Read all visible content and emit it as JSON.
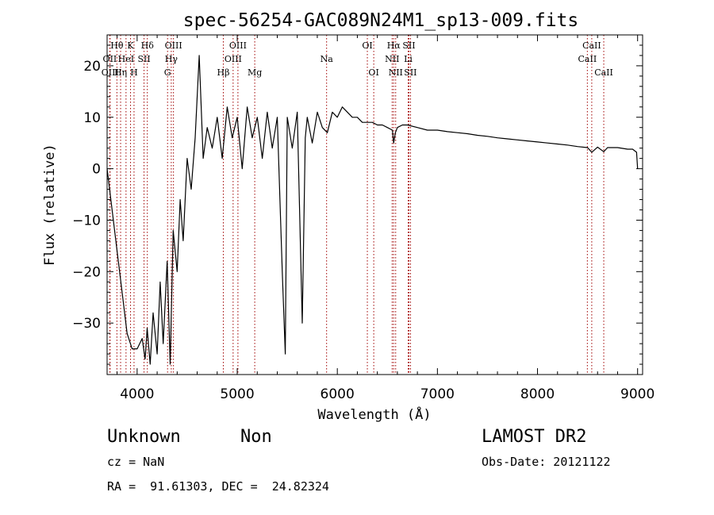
{
  "chart_data": {
    "type": "line",
    "title": "spec-56254-GAC089N24M1_sp13-009.fits",
    "xlabel": "Wavelength (Å)",
    "ylabel": "Flux (relative)",
    "xlim": [
      3700,
      9050
    ],
    "ylim": [
      -40,
      26
    ],
    "xticks": [
      4000,
      5000,
      6000,
      7000,
      8000,
      9000
    ],
    "yticks": [
      -30,
      -20,
      -10,
      0,
      10,
      20
    ],
    "grid": false,
    "colors": {
      "spectrum": "#000000",
      "lines": "#a00000"
    },
    "series": [
      {
        "x": [
          3700,
          3750,
          3800,
          3850,
          3900,
          3950,
          4000,
          4050,
          4080,
          4100,
          4130,
          4160,
          4200,
          4230,
          4260,
          4300,
          4330,
          4360,
          4400,
          4430,
          4460,
          4500,
          4540,
          4580,
          4620,
          4660,
          4700,
          4750,
          4800,
          4850,
          4900,
          4950,
          5000,
          5050,
          5100,
          5150,
          5200,
          5250,
          5300,
          5350,
          5400,
          5450,
          5480,
          5500,
          5550,
          5600,
          5650,
          5680,
          5700,
          5750,
          5800,
          5850,
          5900,
          5950,
          6000,
          6050,
          6100,
          6150,
          6200,
          6250,
          6300,
          6350,
          6400,
          6450,
          6500,
          6550,
          6563,
          6580,
          6600,
          6650,
          6700,
          6800,
          6900,
          7000,
          7100,
          7200,
          7300,
          7400,
          7500,
          7600,
          7700,
          7800,
          7900,
          8000,
          8100,
          8200,
          8300,
          8400,
          8500,
          8542,
          8600,
          8662,
          8700,
          8800,
          8900,
          8950,
          8990,
          9000
        ],
        "y": [
          0,
          -8,
          -16,
          -24,
          -32,
          -35,
          -35,
          -33,
          -37,
          -31,
          -38,
          -28,
          -36,
          -22,
          -34,
          -18,
          -38,
          -12,
          -20,
          -6,
          -14,
          2,
          -4,
          6,
          22,
          2,
          8,
          4,
          10,
          2,
          12,
          6,
          10,
          0,
          12,
          6,
          10,
          2,
          11,
          4,
          10,
          -20,
          -36,
          10,
          4,
          11,
          -30,
          6,
          10,
          5,
          11,
          8,
          7,
          11,
          10,
          12,
          11,
          10,
          10,
          9,
          9,
          9,
          8.5,
          8.5,
          8,
          7.5,
          5,
          7,
          8,
          8.5,
          8.5,
          8,
          7.5,
          7.5,
          7.2,
          7,
          6.8,
          6.5,
          6.3,
          6,
          5.8,
          5.6,
          5.4,
          5.2,
          5,
          4.8,
          4.6,
          4.3,
          4.1,
          3.2,
          4.2,
          3.3,
          4.1,
          4.1,
          3.8,
          3.8,
          3.2,
          0
        ]
      }
    ],
    "lines": [
      {
        "label": "Hθ",
        "wave": 3798,
        "row": 1
      },
      {
        "label": "OII",
        "wave": 3727,
        "row": 2
      },
      {
        "label": "OIII",
        "wave": 3730,
        "row": 3
      },
      {
        "label": "Hη",
        "wave": 3835,
        "row": 3
      },
      {
        "label": "K",
        "wave": 3934,
        "row": 1
      },
      {
        "label": "HeI",
        "wave": 3889,
        "row": 2
      },
      {
        "label": "H",
        "wave": 3969,
        "row": 3
      },
      {
        "label": "SII",
        "wave": 4069,
        "row": 2
      },
      {
        "label": "Hδ",
        "wave": 4102,
        "row": 1
      },
      {
        "label": "OIII",
        "wave": 4363,
        "row": 1
      },
      {
        "label": "Hγ",
        "wave": 4341,
        "row": 2
      },
      {
        "label": "G",
        "wave": 4304,
        "row": 3
      },
      {
        "label": "Hβ",
        "wave": 4861,
        "row": 3
      },
      {
        "label": "OIII",
        "wave": 5007,
        "row": 1
      },
      {
        "label": "OIII",
        "wave": 4959,
        "row": 2
      },
      {
        "label": "Mg",
        "wave": 5175,
        "row": 3
      },
      {
        "label": "Na",
        "wave": 5893,
        "row": 2
      },
      {
        "label": "OI",
        "wave": 6300,
        "row": 1
      },
      {
        "label": "OI",
        "wave": 6364,
        "row": 3
      },
      {
        "label": "Hα",
        "wave": 6563,
        "row": 1
      },
      {
        "label": "NII",
        "wave": 6548,
        "row": 2
      },
      {
        "label": "NII",
        "wave": 6583,
        "row": 3
      },
      {
        "label": "SII",
        "wave": 6716,
        "row": 1
      },
      {
        "label": "Li",
        "wave": 6708,
        "row": 2
      },
      {
        "label": "SII",
        "wave": 6731,
        "row": 3
      },
      {
        "label": "CaII",
        "wave": 8542,
        "row": 1
      },
      {
        "label": "CaII",
        "wave": 8498,
        "row": 2
      },
      {
        "label": "CaII",
        "wave": 8662,
        "row": 3
      }
    ]
  },
  "info": {
    "class": "Unknown",
    "subclass": "Non",
    "survey": "LAMOST DR2",
    "cz": "cz = NaN",
    "obsdate": "Obs-Date: 20121122",
    "coords": "RA =  91.61303, DEC =  24.82324"
  }
}
